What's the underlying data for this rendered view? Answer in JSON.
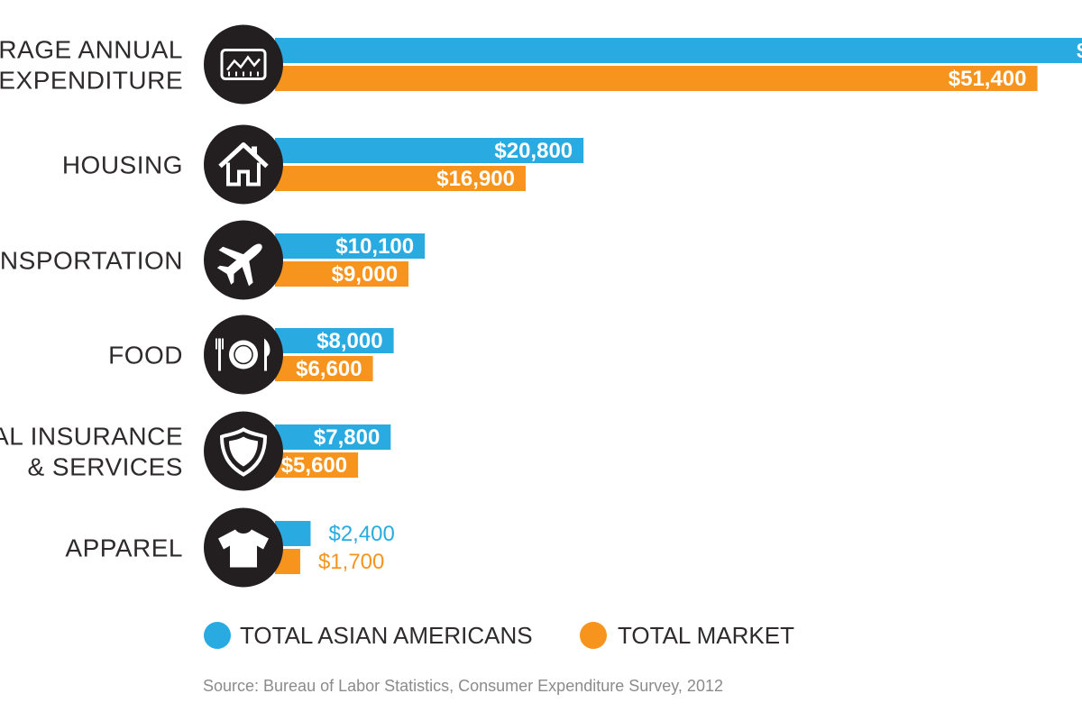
{
  "colors": {
    "series_asian": "#29ABE2",
    "series_market": "#F7941D",
    "icon_circle": "#231F20",
    "text": "#2F2B2C",
    "source": "#8B8B8B"
  },
  "legend": {
    "asian_label": "TOTAL ASIAN AMERICANS",
    "market_label": "TOTAL MARKET"
  },
  "source": "Source: Bureau of Labor Statistics, Consumer Expenditure Survey, 2012",
  "chart_data": {
    "type": "bar",
    "orientation": "horizontal",
    "categories": [
      [
        "ERAGE ANNUAL",
        "EXPENDITURE"
      ],
      [
        "HOUSING"
      ],
      [
        "ANSPORTATION"
      ],
      [
        "FOOD"
      ],
      [
        "AL INSURANCE",
        "& SERVICES"
      ],
      [
        "APPAREL"
      ]
    ],
    "icons": [
      "chart-icon",
      "house-icon",
      "airplane-icon",
      "plate-icon",
      "shield-icon",
      "tshirt-icon"
    ],
    "series": [
      {
        "name": "TOTAL ASIAN AMERICANS",
        "color": "#29ABE2",
        "values": [
          null,
          20800,
          10100,
          8000,
          7800,
          2400
        ],
        "labels": [
          "$",
          "$20,800",
          "$10,100",
          "$8,000",
          "$7,800",
          "$2,400"
        ]
      },
      {
        "name": "TOTAL MARKET",
        "color": "#F7941D",
        "values": [
          51400,
          16900,
          9000,
          6600,
          5600,
          1700
        ],
        "labels": [
          "$51,400",
          "$16,900",
          "$9,000",
          "$6,600",
          "$5,600",
          "$1,700"
        ]
      }
    ],
    "bar_extends_past_frame": [
      true,
      false,
      false,
      false,
      false,
      false
    ],
    "legend_position": "bottom-left",
    "grid": false
  }
}
